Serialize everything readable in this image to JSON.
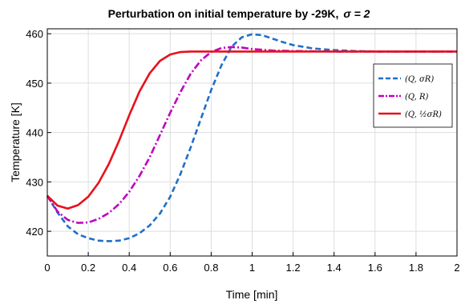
{
  "chart_data": {
    "type": "line",
    "title_main": "Perturbation on initial temperature by -29K,",
    "title_sigma": "σ = 2",
    "xlabel": "Time [min]",
    "ylabel": "Temperature [K]",
    "xlim": [
      0,
      2
    ],
    "ylim": [
      415,
      461
    ],
    "xticks": [
      "0",
      "0.2",
      "0.4",
      "0.6",
      "0.8",
      "1",
      "1.2",
      "1.4",
      "1.6",
      "1.8",
      "2"
    ],
    "yticks": [
      "420",
      "430",
      "440",
      "450",
      "460"
    ],
    "grid": true,
    "legend_position": "top-right",
    "series": [
      {
        "name": "(Q, σR)",
        "color": "#1f6fc8",
        "style": "dashed",
        "x": [
          0,
          0.05,
          0.1,
          0.15,
          0.2,
          0.25,
          0.3,
          0.35,
          0.4,
          0.45,
          0.5,
          0.55,
          0.6,
          0.65,
          0.7,
          0.75,
          0.8,
          0.85,
          0.9,
          0.95,
          1.0,
          1.05,
          1.1,
          1.15,
          1.2,
          1.3,
          1.4,
          1.5,
          1.6,
          1.8,
          2.0
        ],
        "y": [
          427.2,
          423.8,
          421.0,
          419.4,
          418.6,
          418.1,
          418.0,
          418.1,
          418.6,
          419.6,
          421.2,
          423.6,
          427.0,
          431.6,
          437.0,
          442.8,
          448.6,
          453.6,
          457.4,
          459.3,
          459.9,
          459.7,
          459.0,
          458.3,
          457.7,
          457.0,
          456.7,
          456.5,
          456.4,
          456.4,
          456.4
        ]
      },
      {
        "name": "(Q, R)",
        "color": "#c000c0",
        "style": "dashdot",
        "x": [
          0,
          0.05,
          0.1,
          0.15,
          0.2,
          0.25,
          0.3,
          0.35,
          0.4,
          0.45,
          0.5,
          0.55,
          0.6,
          0.65,
          0.7,
          0.75,
          0.8,
          0.85,
          0.9,
          0.95,
          1.0,
          1.1,
          1.2,
          1.4,
          1.6,
          2.0
        ],
        "y": [
          427.2,
          424.0,
          422.3,
          421.7,
          421.8,
          422.5,
          423.7,
          425.5,
          428.0,
          431.2,
          435.0,
          439.5,
          444.0,
          448.2,
          451.9,
          454.6,
          456.3,
          457.1,
          457.3,
          457.2,
          456.9,
          456.6,
          456.5,
          456.4,
          456.4,
          456.4
        ]
      },
      {
        "name": "(Q, ½σR)",
        "color": "#e8101a",
        "style": "solid",
        "x": [
          0,
          0.05,
          0.1,
          0.15,
          0.2,
          0.25,
          0.3,
          0.35,
          0.4,
          0.45,
          0.5,
          0.55,
          0.6,
          0.65,
          0.7,
          0.8,
          0.9,
          1.0,
          1.2,
          1.4,
          1.6,
          2.0
        ],
        "y": [
          427.2,
          425.2,
          424.6,
          425.3,
          427.0,
          429.8,
          433.6,
          438.3,
          443.5,
          448.3,
          452.0,
          454.5,
          455.8,
          456.3,
          456.4,
          456.4,
          456.4,
          456.4,
          456.4,
          456.4,
          456.4,
          456.4
        ]
      }
    ]
  }
}
